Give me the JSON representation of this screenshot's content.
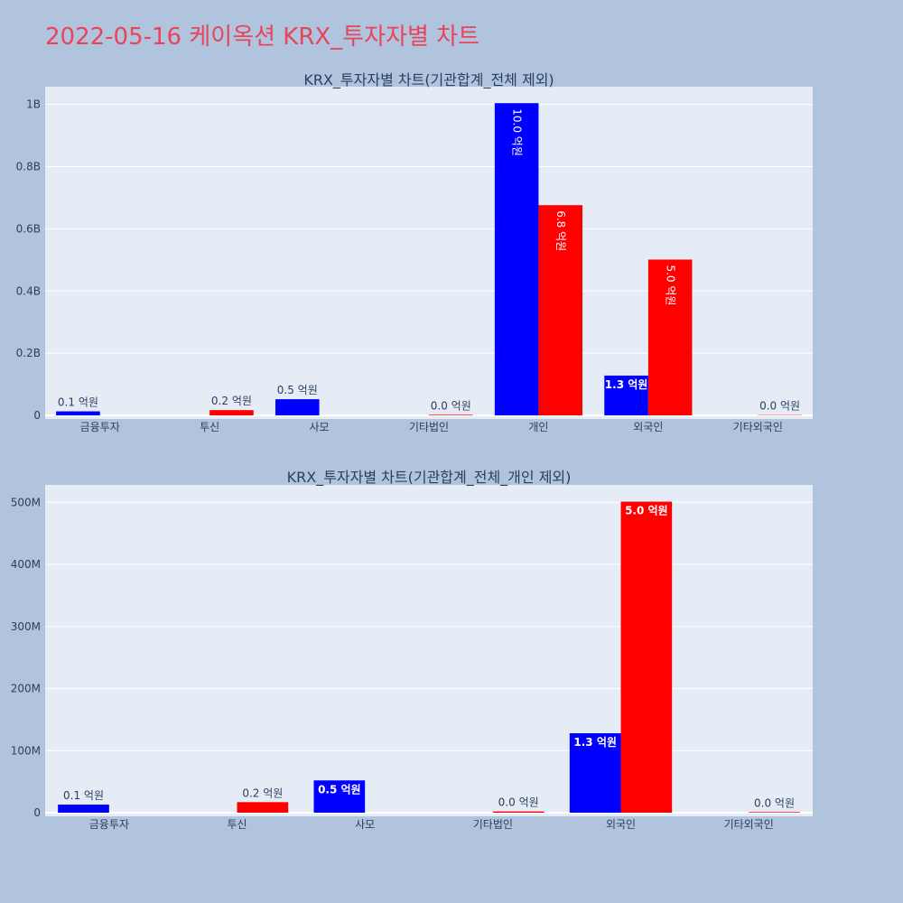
{
  "page": {
    "title": "2022-05-16 케이옥션 KRX_투자자별 차트"
  },
  "colors": {
    "buy": "#0000ff",
    "sell": "#ff0000",
    "plot_bg": "#e5ecf6",
    "page_bg": "#b0c4de",
    "title": "#e8455a",
    "text": "#2a3f5f",
    "outside_label": "#2a3f5f",
    "inside_label": "#ffffff"
  },
  "chart_data": [
    {
      "type": "bar",
      "title": "KRX_투자자별 차트(기관합계_전체 제외)",
      "categories": [
        "금융투자",
        "투신",
        "사모",
        "기타법인",
        "개인",
        "외국인",
        "기타외국인"
      ],
      "series": [
        {
          "color": "blue",
          "values": [
            13000000,
            0,
            52000000,
            0,
            1004000000,
            128000000,
            0
          ]
        },
        {
          "color": "red",
          "values": [
            0,
            17000000,
            0,
            2000000,
            676000000,
            501000000,
            1000000
          ]
        }
      ],
      "labels": [
        {
          "category": "금융투자",
          "series": 0,
          "text": "0.1 억원",
          "position": "outside"
        },
        {
          "category": "투신",
          "series": 1,
          "text": "0.2 억원",
          "position": "outside"
        },
        {
          "category": "사모",
          "series": 0,
          "text": "0.5 억원",
          "position": "outside"
        },
        {
          "category": "기타법인",
          "series": 1,
          "text": "0.0 억원",
          "position": "outside"
        },
        {
          "category": "개인",
          "series": 0,
          "text": "10.0 억원",
          "position": "inside",
          "rotated": true
        },
        {
          "category": "개인",
          "series": 1,
          "text": "6.8 억원",
          "position": "inside",
          "rotated": true
        },
        {
          "category": "외국인",
          "series": 0,
          "text": "1.3 억원",
          "position": "inside",
          "rotated": false
        },
        {
          "category": "외국인",
          "series": 1,
          "text": "5.0 억원",
          "position": "inside",
          "rotated": true
        },
        {
          "category": "기타외국인",
          "series": 1,
          "text": "0.0 억원",
          "position": "outside"
        }
      ],
      "yticks": [
        0,
        200000000,
        400000000,
        600000000,
        800000000,
        1000000000
      ],
      "ytick_labels": [
        "0",
        "0.2B",
        "0.4B",
        "0.6B",
        "0.8B",
        "1B"
      ],
      "ylim": [
        0,
        1057000000
      ],
      "grid": true,
      "legend": "none"
    },
    {
      "type": "bar",
      "title": "KRX_투자자별 차트(기관합계_전체_개인 제외)",
      "categories": [
        "금융투자",
        "투신",
        "사모",
        "기타법인",
        "외국인",
        "기타외국인"
      ],
      "series": [
        {
          "color": "blue",
          "values": [
            13000000,
            0,
            52000000,
            0,
            128000000,
            0
          ]
        },
        {
          "color": "red",
          "values": [
            0,
            17000000,
            0,
            2000000,
            501000000,
            1000000
          ]
        }
      ],
      "labels": [
        {
          "category": "금융투자",
          "series": 0,
          "text": "0.1 억원",
          "position": "outside"
        },
        {
          "category": "투신",
          "series": 1,
          "text": "0.2 억원",
          "position": "outside"
        },
        {
          "category": "사모",
          "series": 0,
          "text": "0.5 억원",
          "position": "inside",
          "rotated": false
        },
        {
          "category": "기타법인",
          "series": 1,
          "text": "0.0 억원",
          "position": "outside"
        },
        {
          "category": "외국인",
          "series": 0,
          "text": "1.3 억원",
          "position": "inside",
          "rotated": false
        },
        {
          "category": "외국인",
          "series": 1,
          "text": "5.0 억원",
          "position": "inside",
          "rotated": false
        },
        {
          "category": "기타외국인",
          "series": 1,
          "text": "0.0 억원",
          "position": "outside"
        }
      ],
      "yticks": [
        0,
        100000000,
        200000000,
        300000000,
        400000000,
        500000000
      ],
      "ytick_labels": [
        "0",
        "100M",
        "200M",
        "300M",
        "400M",
        "500M"
      ],
      "ylim": [
        0,
        528000000
      ],
      "grid": true,
      "legend": "none"
    }
  ]
}
